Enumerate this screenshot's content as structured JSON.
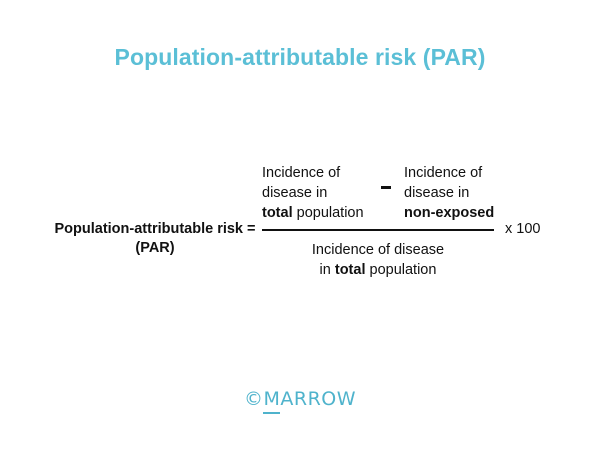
{
  "title": "Population-attributable risk (PAR)",
  "colors": {
    "title": "#5bbfd6",
    "text": "#111111",
    "watermark": "#4fb3cc"
  },
  "formula": {
    "lhs": {
      "line1": "Population-attributable risk =",
      "line2": "(PAR)"
    },
    "numerator_left": {
      "line1": "Incidence of",
      "line2": "disease in",
      "line3_bold": "total",
      "line3_rest": " population"
    },
    "operator": "minus",
    "numerator_right": {
      "line1": "Incidence of",
      "line2": "disease in",
      "line3_bold": "non-exposed"
    },
    "denominator": {
      "line1": "Incidence of disease",
      "line2_pre": "in ",
      "line2_bold": "total",
      "line2_post": " population"
    },
    "multiplier": "x 100"
  },
  "watermark": {
    "copyright": "©",
    "underlined": "M",
    "rest": "ARROW"
  }
}
